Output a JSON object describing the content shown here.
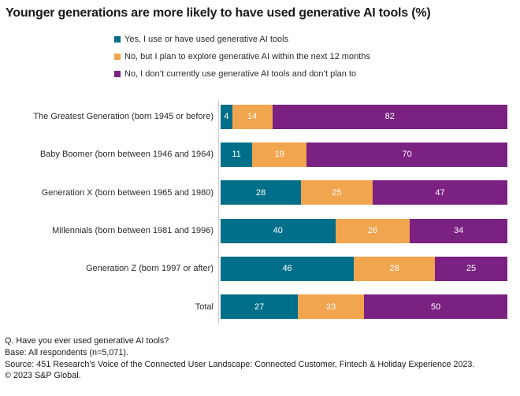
{
  "chart_data": {
    "type": "bar",
    "orientation": "horizontal",
    "stacked": true,
    "title": "Younger generations are more likely to have used generative AI tools (%)",
    "xlabel": "",
    "ylabel": "",
    "xlim": [
      0,
      100
    ],
    "grid": false,
    "legend_position": "top",
    "value_labels": true,
    "value_label_color": "#ffffff",
    "categories": [
      "The Greatest Generation (born 1945 or before)",
      "Baby Boomer (born between 1946 and 1964)",
      "Generation X (born between 1965 and 1980)",
      "Millennials (born between 1981 and 1996)",
      "Generation Z (born 1997 or after)",
      "Total"
    ],
    "series": [
      {
        "name": "Yes, I use or have used generative AI tools",
        "color": "#006f8a",
        "values": [
          4,
          11,
          28,
          40,
          46,
          27
        ]
      },
      {
        "name": "No, but I plan to explore generative AI within the next 12 months",
        "color": "#f0a54e",
        "values": [
          14,
          19,
          25,
          26,
          28,
          23
        ]
      },
      {
        "name": "No, I don’t currently use generative AI tools and don’t plan to",
        "color": "#7a2182",
        "values": [
          82,
          70,
          47,
          34,
          25,
          50
        ]
      }
    ]
  },
  "footer": {
    "lines": [
      "Q. Have you ever used generative AI tools?",
      "Base: All respondents (n=5,071).",
      "Source: 451 Research’s Voice of the Connected User Landscape: Connected Customer, Fintech & Holiday Experience 2023.",
      "© 2023 S&P Global."
    ]
  },
  "colors": {
    "axis_line": "#cccccc",
    "title_text": "#1a1a1a",
    "label_text": "#2b2b2b"
  }
}
